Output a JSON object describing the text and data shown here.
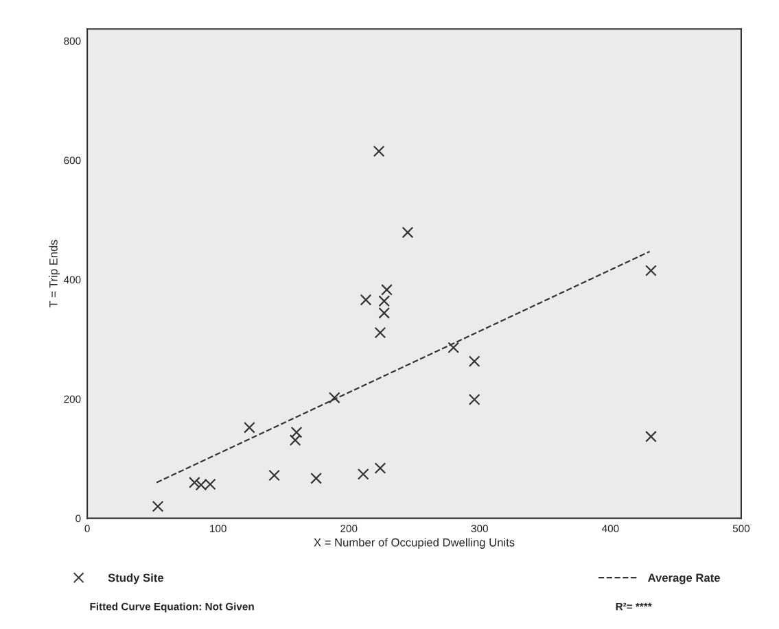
{
  "chart_data": {
    "type": "scatter",
    "xlabel": "X = Number of Occupied Dwelling Units",
    "ylabel": "T = Trip Ends",
    "xlim": [
      0,
      500
    ],
    "xticks": [
      0,
      100,
      200,
      300,
      400,
      500
    ],
    "ylim": [
      0,
      820
    ],
    "yticks": [
      0,
      200,
      400,
      600,
      800
    ],
    "grid": false,
    "legend": "bottom",
    "marker": "cross",
    "series": [
      {
        "name": "Study Site",
        "color": "#333333",
        "x": [
          54,
          82,
          87,
          94,
          124,
          160,
          159,
          143,
          175,
          211,
          224,
          189,
          229,
          213,
          227,
          227,
          224,
          280,
          296,
          296,
          431,
          223,
          245,
          431
        ],
        "values": [
          20,
          60,
          56,
          57,
          152,
          144,
          131,
          72,
          67,
          74,
          84,
          202,
          383,
          366,
          364,
          344,
          311,
          286,
          263,
          199,
          137,
          615,
          479,
          415
        ]
      },
      {
        "name": "Average Rate",
        "color": "#333333",
        "type": "line",
        "line_style": "dashed",
        "marker": "none",
        "x": [
          53,
          430
        ],
        "values": [
          60,
          447
        ]
      }
    ],
    "annotations": [
      "Fitted Curve Equation: Not Given",
      "R²= ****"
    ]
  }
}
